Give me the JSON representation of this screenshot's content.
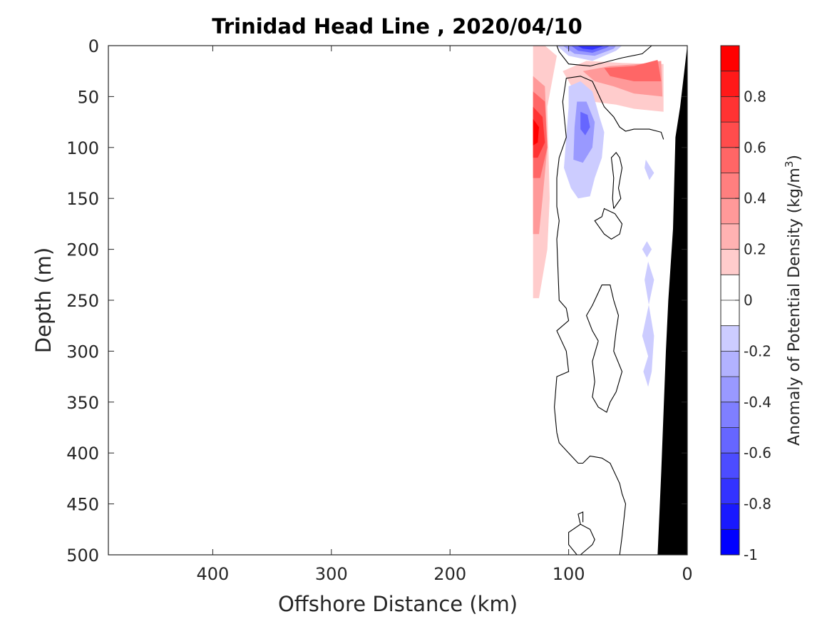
{
  "chart_data": {
    "type": "heatmap",
    "subtype": "filled-contour section",
    "title": "Trinidad Head Line , 2020/04/10",
    "xlabel": "Offshore Distance (km)",
    "ylabel": "Depth (m)",
    "xlim": [
      488,
      0
    ],
    "x_reversed": true,
    "ylim": [
      0,
      500
    ],
    "y_reversed": true,
    "x_ticks": [
      400,
      300,
      200,
      100,
      0
    ],
    "y_ticks": [
      0,
      50,
      100,
      150,
      200,
      250,
      300,
      350,
      400,
      450,
      500
    ],
    "colorbar": {
      "label_text": "Anomaly of Potential Density (kg/m",
      "label_sup": "3",
      "label_close": ")",
      "range": [
        -1,
        1
      ],
      "step": 0.1,
      "ticks": [
        0.8,
        0.6,
        0.4,
        0.2,
        0,
        -0.2,
        -0.4,
        -0.6,
        -0.8,
        -1
      ],
      "tick_labels": [
        "0.8",
        "0.6",
        "0.4",
        "0.2",
        "0",
        "-0.2",
        "-0.4",
        "-0.6",
        "-0.8",
        "-1"
      ]
    },
    "colors": {
      "red_levels": [
        "#ffe5e5",
        "#ffcccc",
        "#ffb2b2",
        "#ff9999",
        "#ff7f7f",
        "#ff6666",
        "#ff4c4c",
        "#ff3333",
        "#ff1919",
        "#ff0000"
      ],
      "blue_levels": [
        "#e5e5ff",
        "#ccccff",
        "#b2b2ff",
        "#9999ff",
        "#7f7fff",
        "#6666ff",
        "#4c4cff",
        "#3333ff",
        "#1919ff",
        "#0000ff"
      ],
      "zero": "#ffffff",
      "bathymetry": "#000000",
      "contour": "#000000"
    },
    "regions": [
      {
        "level": 0.1,
        "points": [
          [
            130,
            0
          ],
          [
            120,
            0
          ],
          [
            110,
            10
          ],
          [
            118,
            60
          ],
          [
            116,
            150
          ],
          [
            118,
            200
          ],
          [
            125,
            248
          ],
          [
            130,
            248
          ]
        ]
      },
      {
        "level": 0.3,
        "points": [
          [
            130,
            30
          ],
          [
            120,
            40
          ],
          [
            118,
            100
          ],
          [
            122,
            150
          ],
          [
            125,
            185
          ],
          [
            130,
            185
          ]
        ]
      },
      {
        "level": 0.5,
        "points": [
          [
            130,
            45
          ],
          [
            120,
            55
          ],
          [
            118,
            100
          ],
          [
            124,
            130
          ],
          [
            130,
            130
          ]
        ]
      },
      {
        "level": 0.7,
        "points": [
          [
            130,
            60
          ],
          [
            122,
            70
          ],
          [
            120,
            95
          ],
          [
            126,
            110
          ],
          [
            130,
            110
          ]
        ]
      },
      {
        "level": 0.9,
        "points": [
          [
            130,
            72
          ],
          [
            125,
            80
          ],
          [
            126,
            95
          ],
          [
            130,
            98
          ]
        ]
      },
      {
        "level": 0.1,
        "points": [
          [
            105,
            25
          ],
          [
            85,
            15
          ],
          [
            55,
            17
          ],
          [
            20,
            18
          ],
          [
            20,
            65
          ],
          [
            45,
            62
          ],
          [
            60,
            58
          ],
          [
            80,
            55
          ],
          [
            95,
            45
          ]
        ]
      },
      {
        "level": 0.3,
        "points": [
          [
            88,
            25
          ],
          [
            65,
            20
          ],
          [
            40,
            18
          ],
          [
            22,
            15
          ],
          [
            21,
            50
          ],
          [
            45,
            47
          ],
          [
            62,
            40
          ],
          [
            78,
            35
          ]
        ]
      },
      {
        "level": 0.5,
        "points": [
          [
            70,
            22
          ],
          [
            45,
            20
          ],
          [
            25,
            14
          ],
          [
            22,
            35
          ],
          [
            45,
            35
          ],
          [
            65,
            30
          ]
        ]
      },
      {
        "level": -0.1,
        "points": [
          [
            110,
            0
          ],
          [
            100,
            10
          ],
          [
            80,
            15
          ],
          [
            60,
            5
          ],
          [
            55,
            0
          ]
        ]
      },
      {
        "level": -0.3,
        "points": [
          [
            105,
            0
          ],
          [
            95,
            8
          ],
          [
            78,
            10
          ],
          [
            62,
            3
          ],
          [
            60,
            0
          ]
        ]
      },
      {
        "level": -0.5,
        "points": [
          [
            98,
            0
          ],
          [
            92,
            5
          ],
          [
            80,
            7
          ],
          [
            68,
            2
          ],
          [
            65,
            0
          ]
        ]
      },
      {
        "level": -0.7,
        "points": [
          [
            93,
            0
          ],
          [
            88,
            3
          ],
          [
            80,
            4
          ],
          [
            72,
            1
          ],
          [
            70,
            0
          ]
        ]
      },
      {
        "level": -0.1,
        "points": [
          [
            100,
            40
          ],
          [
            90,
            35
          ],
          [
            80,
            45
          ],
          [
            74,
            70
          ],
          [
            70,
            85
          ],
          [
            72,
            110
          ],
          [
            78,
            130
          ],
          [
            82,
            148
          ],
          [
            92,
            150
          ],
          [
            98,
            140
          ],
          [
            104,
            120
          ],
          [
            102,
            90
          ],
          [
            100,
            60
          ]
        ]
      },
      {
        "level": -0.3,
        "points": [
          [
            93,
            55
          ],
          [
            85,
            55
          ],
          [
            78,
            75
          ],
          [
            80,
            100
          ],
          [
            88,
            115
          ],
          [
            96,
            112
          ],
          [
            95,
            80
          ]
        ]
      },
      {
        "level": -0.5,
        "points": [
          [
            90,
            65
          ],
          [
            84,
            68
          ],
          [
            82,
            80
          ],
          [
            86,
            88
          ],
          [
            90,
            82
          ]
        ]
      },
      {
        "level": -0.1,
        "points": [
          [
            35,
            112
          ],
          [
            28,
            125
          ],
          [
            32,
            132
          ],
          [
            36,
            120
          ]
        ]
      },
      {
        "level": -0.1,
        "points": [
          [
            34,
            192
          ],
          [
            30,
            200
          ],
          [
            34,
            208
          ],
          [
            38,
            200
          ]
        ]
      },
      {
        "level": -0.1,
        "points": [
          [
            33,
            212
          ],
          [
            28,
            230
          ],
          [
            38,
            285
          ],
          [
            33,
            305
          ],
          [
            37,
            320
          ],
          [
            33,
            335
          ],
          [
            30,
            320
          ],
          [
            28,
            285
          ],
          [
            36,
            230
          ]
        ]
      }
    ],
    "contours": [
      {
        "points": [
          [
            130,
            0
          ],
          [
            110,
            0
          ],
          [
            108,
            6
          ],
          [
            100,
            18
          ],
          [
            82,
            20
          ],
          [
            55,
            12
          ],
          [
            38,
            8
          ],
          [
            30,
            0
          ]
        ]
      },
      {
        "points": [
          [
            20,
            92
          ],
          [
            22,
            85
          ],
          [
            32,
            82
          ],
          [
            45,
            82
          ],
          [
            52,
            84
          ],
          [
            57,
            80
          ],
          [
            62,
            70
          ],
          [
            70,
            60
          ],
          [
            80,
            35
          ],
          [
            90,
            30
          ],
          [
            102,
            32
          ],
          [
            105,
            55
          ],
          [
            102,
            90
          ],
          [
            108,
            110
          ],
          [
            110,
            130
          ],
          [
            110,
            158
          ],
          [
            108,
            172
          ],
          [
            110,
            190
          ],
          [
            108,
            250
          ],
          [
            102,
            258
          ],
          [
            100,
            270
          ],
          [
            110,
            280
          ],
          [
            102,
            300
          ],
          [
            100,
            320
          ],
          [
            110,
            325
          ],
          [
            112,
            355
          ],
          [
            110,
            380
          ],
          [
            108,
            390
          ],
          [
            100,
            400
          ],
          [
            92,
            410
          ],
          [
            88,
            410
          ],
          [
            82,
            403
          ],
          [
            72,
            405
          ],
          [
            65,
            410
          ],
          [
            57,
            430
          ],
          [
            55,
            440
          ],
          [
            52,
            450
          ],
          [
            55,
            482
          ],
          [
            57,
            500
          ]
        ]
      },
      {
        "points": [
          [
            61,
            165
          ],
          [
            70,
            160
          ],
          [
            72,
            168
          ],
          [
            78,
            172
          ],
          [
            70,
            185
          ],
          [
            64,
            190
          ],
          [
            57,
            185
          ],
          [
            55,
            175
          ],
          [
            61,
            165
          ]
        ]
      },
      {
        "points": [
          [
            62,
            160
          ],
          [
            56,
            150
          ],
          [
            58,
            140
          ],
          [
            55,
            120
          ],
          [
            57,
            110
          ],
          [
            60,
            105
          ],
          [
            64,
            110
          ],
          [
            62,
            130
          ],
          [
            63,
            150
          ],
          [
            62,
            160
          ]
        ]
      },
      {
        "points": [
          [
            75,
            290
          ],
          [
            80,
            280
          ],
          [
            85,
            265
          ],
          [
            80,
            255
          ],
          [
            72,
            235
          ],
          [
            65,
            235
          ],
          [
            62,
            250
          ],
          [
            58,
            265
          ],
          [
            60,
            280
          ],
          [
            62,
            300
          ],
          [
            55,
            320
          ],
          [
            60,
            340
          ],
          [
            65,
            350
          ],
          [
            68,
            360
          ],
          [
            75,
            355
          ],
          [
            80,
            345
          ],
          [
            78,
            330
          ],
          [
            80,
            310
          ],
          [
            75,
            290
          ]
        ]
      },
      {
        "points": [
          [
            90,
            500
          ],
          [
            80,
            490
          ],
          [
            78,
            485
          ],
          [
            82,
            475
          ],
          [
            90,
            470
          ],
          [
            100,
            478
          ],
          [
            100,
            490
          ],
          [
            93,
            500
          ]
        ]
      },
      {
        "points": [
          [
            90,
            470
          ],
          [
            92,
            460
          ],
          [
            88,
            458
          ],
          [
            88,
            468
          ]
        ]
      }
    ],
    "bathymetry": [
      [
        0,
        0
      ],
      [
        6,
        60
      ],
      [
        10,
        90
      ],
      [
        12,
        180
      ],
      [
        16,
        250
      ],
      [
        18,
        300
      ],
      [
        20,
        360
      ],
      [
        22,
        420
      ],
      [
        25,
        500
      ],
      [
        0,
        500
      ]
    ]
  }
}
